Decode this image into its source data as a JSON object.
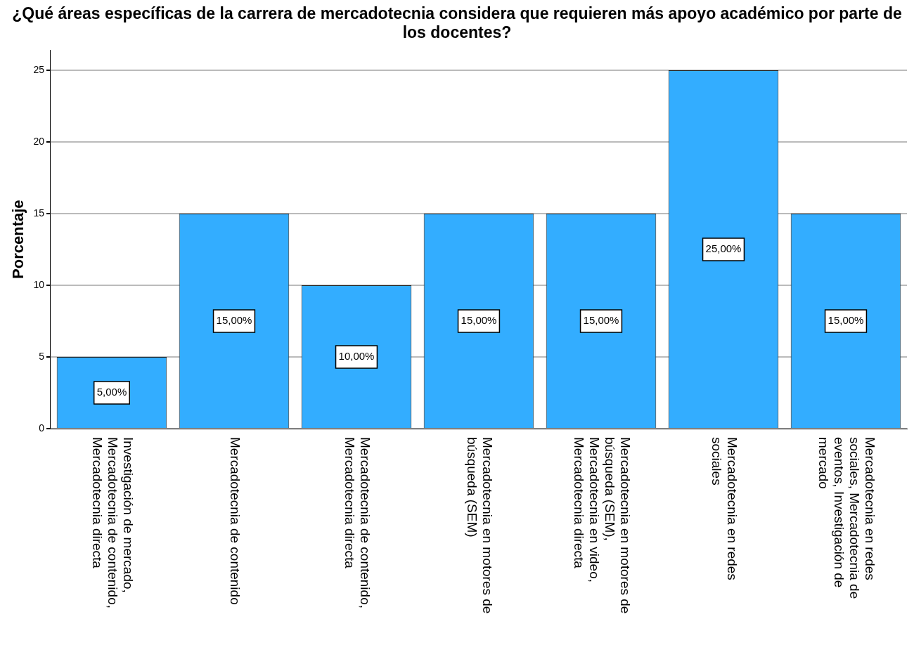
{
  "chart_data": {
    "type": "bar",
    "title": "¿Qué áreas específicas de la carrera de mercadotecnia considera que requieren más apoyo académico por parte de los docentes?",
    "ylabel": "Porcentaje",
    "categories": [
      "Investigación de mercado, Mercadotecnia de contenido, Mercadotecnia directa",
      "Mercadotecnia de contenido",
      "Mercadotecnia de contenido, Mercadotecnia directa",
      "Mercadotecnia en motores de búsqueda (SEM)",
      "Mercadotecnia en motores de búsqueda (SEM), Mercadotecnia en video, Mercadotecnia directa",
      "Mercadotecnia en redes sociales",
      "Mercadotecnia en redes sociales, Mercadotecnia de eventos, Investigación de mercado"
    ],
    "values": [
      5,
      15,
      10,
      15,
      15,
      25,
      15
    ],
    "value_labels": [
      "5,00%",
      "15,00%",
      "10,00%",
      "15,00%",
      "15,00%",
      "25,00%",
      "15,00%"
    ],
    "color": "#33adff",
    "ylim": [
      0,
      26.4
    ],
    "yticks": [
      0,
      5,
      10,
      15,
      20,
      25
    ],
    "grid": "y",
    "legend": false
  }
}
